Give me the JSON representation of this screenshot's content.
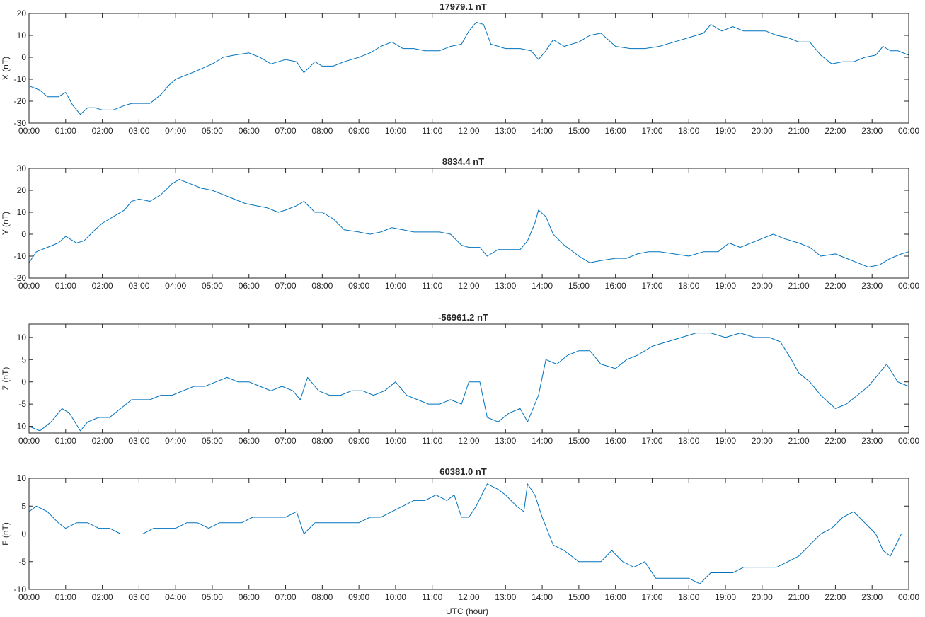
{
  "figure": {
    "xlabel": "UTC (hour)"
  },
  "chart_data": [
    {
      "type": "line",
      "title": "17979.1 nT",
      "ylabel": "X (nT)",
      "xlim": [
        0,
        24
      ],
      "ylim": [
        -30,
        20
      ],
      "yticks": [
        20,
        10,
        0,
        -10,
        -20,
        -30
      ],
      "xtick_labels": [
        "00:00",
        "01:00",
        "02:00",
        "03:00",
        "04:00",
        "05:00",
        "06:00",
        "07:00",
        "08:00",
        "09:00",
        "10:00",
        "11:00",
        "12:00",
        "13:00",
        "14:00",
        "15:00",
        "16:00",
        "17:00",
        "18:00",
        "19:00",
        "20:00",
        "21:00",
        "22:00",
        "23:00",
        "00:00"
      ],
      "color": "#0072BD",
      "series": [
        {
          "x": [
            0,
            0.3,
            0.5,
            0.8,
            1.0,
            1.2,
            1.4,
            1.6,
            1.8,
            2.0,
            2.3,
            2.6,
            2.8,
            3.0,
            3.3,
            3.6,
            3.8,
            4.0,
            4.3,
            4.6,
            5.0,
            5.3,
            5.6,
            6.0,
            6.3,
            6.6,
            6.8,
            7.0,
            7.3,
            7.5,
            7.8,
            8.0,
            8.3,
            8.6,
            9.0,
            9.3,
            9.6,
            9.9,
            10.2,
            10.5,
            10.8,
            11.2,
            11.5,
            11.8,
            12.0,
            12.2,
            12.4,
            12.6,
            13.0,
            13.4,
            13.7,
            13.9,
            14.1,
            14.3,
            14.6,
            15.0,
            15.3,
            15.6,
            16.0,
            16.4,
            16.8,
            17.2,
            17.6,
            18.0,
            18.4,
            18.6,
            18.9,
            19.2,
            19.5,
            19.8,
            20.1,
            20.4,
            20.7,
            21.0,
            21.3,
            21.6,
            21.9,
            22.2,
            22.5,
            22.8,
            23.1,
            23.3,
            23.5,
            23.7,
            24.0
          ],
          "y": [
            -13,
            -15,
            -18,
            -18,
            -16,
            -22,
            -26,
            -23,
            -23,
            -24,
            -24,
            -22,
            -21,
            -21,
            -21,
            -17,
            -13,
            -10,
            -8,
            -6,
            -3,
            0,
            1,
            2,
            0,
            -3,
            -2,
            -1,
            -2,
            -7,
            -2,
            -4,
            -4,
            -2,
            0,
            2,
            5,
            7,
            4,
            4,
            3,
            3,
            5,
            6,
            12,
            16,
            15,
            6,
            4,
            4,
            3,
            -1,
            3,
            8,
            5,
            7,
            10,
            11,
            5,
            4,
            4,
            5,
            7,
            9,
            11,
            15,
            12,
            14,
            12,
            12,
            12,
            10,
            9,
            7,
            7,
            1,
            -3,
            -2,
            -2,
            0,
            1,
            5,
            3,
            3,
            1
          ]
        }
      ]
    },
    {
      "type": "line",
      "title": "8834.4 nT",
      "ylabel": "Y (nT)",
      "xlim": [
        0,
        24
      ],
      "ylim": [
        -20,
        30
      ],
      "yticks": [
        30,
        20,
        10,
        0,
        -10,
        -20
      ],
      "xtick_labels": [
        "00:00",
        "01:00",
        "02:00",
        "03:00",
        "04:00",
        "05:00",
        "06:00",
        "07:00",
        "08:00",
        "09:00",
        "10:00",
        "11:00",
        "12:00",
        "13:00",
        "14:00",
        "15:00",
        "16:00",
        "17:00",
        "18:00",
        "19:00",
        "20:00",
        "21:00",
        "22:00",
        "23:00",
        "00:00"
      ],
      "color": "#0072BD",
      "series": [
        {
          "x": [
            0,
            0.2,
            0.5,
            0.8,
            1.0,
            1.3,
            1.5,
            1.8,
            2.0,
            2.3,
            2.6,
            2.8,
            3.0,
            3.3,
            3.6,
            3.9,
            4.1,
            4.4,
            4.7,
            5.0,
            5.3,
            5.6,
            5.9,
            6.2,
            6.5,
            6.8,
            7.0,
            7.3,
            7.5,
            7.8,
            8.0,
            8.3,
            8.6,
            9.0,
            9.3,
            9.6,
            9.9,
            10.2,
            10.5,
            10.8,
            11.2,
            11.5,
            11.8,
            12.0,
            12.3,
            12.5,
            12.8,
            13.1,
            13.4,
            13.6,
            13.8,
            13.9,
            14.1,
            14.3,
            14.6,
            15.0,
            15.3,
            15.6,
            16.0,
            16.3,
            16.6,
            16.9,
            17.2,
            17.6,
            18.0,
            18.4,
            18.8,
            19.1,
            19.4,
            19.7,
            20.0,
            20.3,
            20.6,
            21.0,
            21.3,
            21.6,
            22.0,
            22.3,
            22.6,
            22.9,
            23.2,
            23.5,
            23.8,
            24.0
          ],
          "y": [
            -13,
            -8,
            -6,
            -4,
            -1,
            -4,
            -3,
            2,
            5,
            8,
            11,
            15,
            16,
            15,
            18,
            23,
            25,
            23,
            21,
            20,
            18,
            16,
            14,
            13,
            12,
            10,
            11,
            13,
            15,
            10,
            10,
            7,
            2,
            1,
            0,
            1,
            3,
            2,
            1,
            1,
            1,
            0,
            -5,
            -6,
            -6,
            -10,
            -7,
            -7,
            -7,
            -3,
            5,
            11,
            8,
            0,
            -5,
            -10,
            -13,
            -12,
            -11,
            -11,
            -9,
            -8,
            -8,
            -9,
            -10,
            -8,
            -8,
            -4,
            -6,
            -4,
            -2,
            0,
            -2,
            -4,
            -6,
            -10,
            -9,
            -11,
            -13,
            -15,
            -14,
            -11,
            -9,
            -8
          ]
        }
      ]
    },
    {
      "type": "line",
      "title": "-56961.2 nT",
      "ylabel": "Z (nT)",
      "xlim": [
        0,
        24
      ],
      "ylim": [
        -11.5,
        13
      ],
      "yticks": [
        10,
        5,
        0,
        -5,
        -10
      ],
      "xtick_labels": [
        "00:00",
        "01:00",
        "02:00",
        "03:00",
        "04:00",
        "05:00",
        "06:00",
        "07:00",
        "08:00",
        "09:00",
        "10:00",
        "11:00",
        "12:00",
        "13:00",
        "14:00",
        "15:00",
        "16:00",
        "17:00",
        "18:00",
        "19:00",
        "20:00",
        "21:00",
        "22:00",
        "23:00",
        "00:00"
      ],
      "color": "#0072BD",
      "series": [
        {
          "x": [
            0,
            0.3,
            0.6,
            0.9,
            1.1,
            1.4,
            1.6,
            1.9,
            2.2,
            2.5,
            2.8,
            3.0,
            3.3,
            3.6,
            3.9,
            4.2,
            4.5,
            4.8,
            5.1,
            5.4,
            5.7,
            6.0,
            6.3,
            6.6,
            6.9,
            7.2,
            7.4,
            7.6,
            7.9,
            8.2,
            8.5,
            8.8,
            9.1,
            9.4,
            9.7,
            10.0,
            10.3,
            10.6,
            10.9,
            11.2,
            11.5,
            11.8,
            12.0,
            12.3,
            12.5,
            12.8,
            13.1,
            13.4,
            13.6,
            13.9,
            14.1,
            14.4,
            14.7,
            15.0,
            15.3,
            15.6,
            16.0,
            16.3,
            16.6,
            17.0,
            17.4,
            17.8,
            18.2,
            18.6,
            19.0,
            19.4,
            19.8,
            20.2,
            20.5,
            20.8,
            21.0,
            21.3,
            21.6,
            22.0,
            22.3,
            22.6,
            22.9,
            23.2,
            23.4,
            23.7,
            24.0
          ],
          "y": [
            -10,
            -11,
            -9,
            -6,
            -7,
            -11,
            -9,
            -8,
            -8,
            -6,
            -4,
            -4,
            -4,
            -3,
            -3,
            -2,
            -1,
            -1,
            0,
            1,
            0,
            0,
            -1,
            -2,
            -1,
            -2,
            -4,
            1,
            -2,
            -3,
            -3,
            -2,
            -2,
            -3,
            -2,
            0,
            -3,
            -4,
            -5,
            -5,
            -4,
            -5,
            0,
            0,
            -8,
            -9,
            -7,
            -6,
            -9,
            -3,
            5,
            4,
            6,
            7,
            7,
            4,
            3,
            5,
            6,
            8,
            9,
            10,
            11,
            11,
            10,
            11,
            10,
            10,
            9,
            5,
            2,
            0,
            -3,
            -6,
            -5,
            -3,
            -1,
            2,
            4,
            0,
            -1
          ]
        }
      ]
    },
    {
      "type": "line",
      "title": "60381.0 nT",
      "ylabel": "F (nT)",
      "xlim": [
        0,
        24
      ],
      "ylim": [
        -10,
        10
      ],
      "yticks": [
        10,
        5,
        0,
        -5,
        -10
      ],
      "xtick_labels": [
        "00:00",
        "01:00",
        "02:00",
        "03:00",
        "04:00",
        "05:00",
        "06:00",
        "07:00",
        "08:00",
        "09:00",
        "10:00",
        "11:00",
        "12:00",
        "13:00",
        "14:00",
        "15:00",
        "16:00",
        "17:00",
        "18:00",
        "19:00",
        "20:00",
        "21:00",
        "22:00",
        "23:00",
        "00:00"
      ],
      "color": "#0072BD",
      "series": [
        {
          "x": [
            0,
            0.2,
            0.5,
            0.8,
            1.0,
            1.3,
            1.6,
            1.9,
            2.2,
            2.5,
            2.8,
            3.1,
            3.4,
            3.7,
            4.0,
            4.3,
            4.6,
            4.9,
            5.2,
            5.5,
            5.8,
            6.1,
            6.4,
            6.7,
            7.0,
            7.3,
            7.5,
            7.8,
            8.1,
            8.4,
            8.7,
            9.0,
            9.3,
            9.6,
            9.9,
            10.2,
            10.5,
            10.8,
            11.1,
            11.4,
            11.6,
            11.8,
            12.0,
            12.2,
            12.5,
            12.8,
            13.0,
            13.3,
            13.5,
            13.6,
            13.8,
            14.0,
            14.3,
            14.6,
            15.0,
            15.3,
            15.6,
            15.9,
            16.2,
            16.5,
            16.8,
            17.1,
            17.4,
            17.7,
            18.0,
            18.3,
            18.6,
            18.9,
            19.2,
            19.5,
            19.8,
            20.1,
            20.4,
            20.7,
            21.0,
            21.3,
            21.6,
            21.9,
            22.2,
            22.5,
            22.8,
            23.1,
            23.3,
            23.5,
            23.8,
            24.0
          ],
          "y": [
            4,
            5,
            4,
            2,
            1,
            2,
            2,
            1,
            1,
            0,
            0,
            0,
            1,
            1,
            1,
            2,
            2,
            1,
            2,
            2,
            2,
            3,
            3,
            3,
            3,
            4,
            0,
            2,
            2,
            2,
            2,
            2,
            3,
            3,
            4,
            5,
            6,
            6,
            7,
            6,
            7,
            3,
            3,
            5,
            9,
            8,
            7,
            5,
            4,
            9,
            7,
            3,
            -2,
            -3,
            -5,
            -5,
            -5,
            -3,
            -5,
            -6,
            -5,
            -8,
            -8,
            -8,
            -8,
            -9,
            -7,
            -7,
            -7,
            -6,
            -6,
            -6,
            -6,
            -5,
            -4,
            -2,
            0,
            1,
            3,
            4,
            2,
            0,
            -3,
            -4,
            0,
            0
          ]
        }
      ]
    }
  ]
}
